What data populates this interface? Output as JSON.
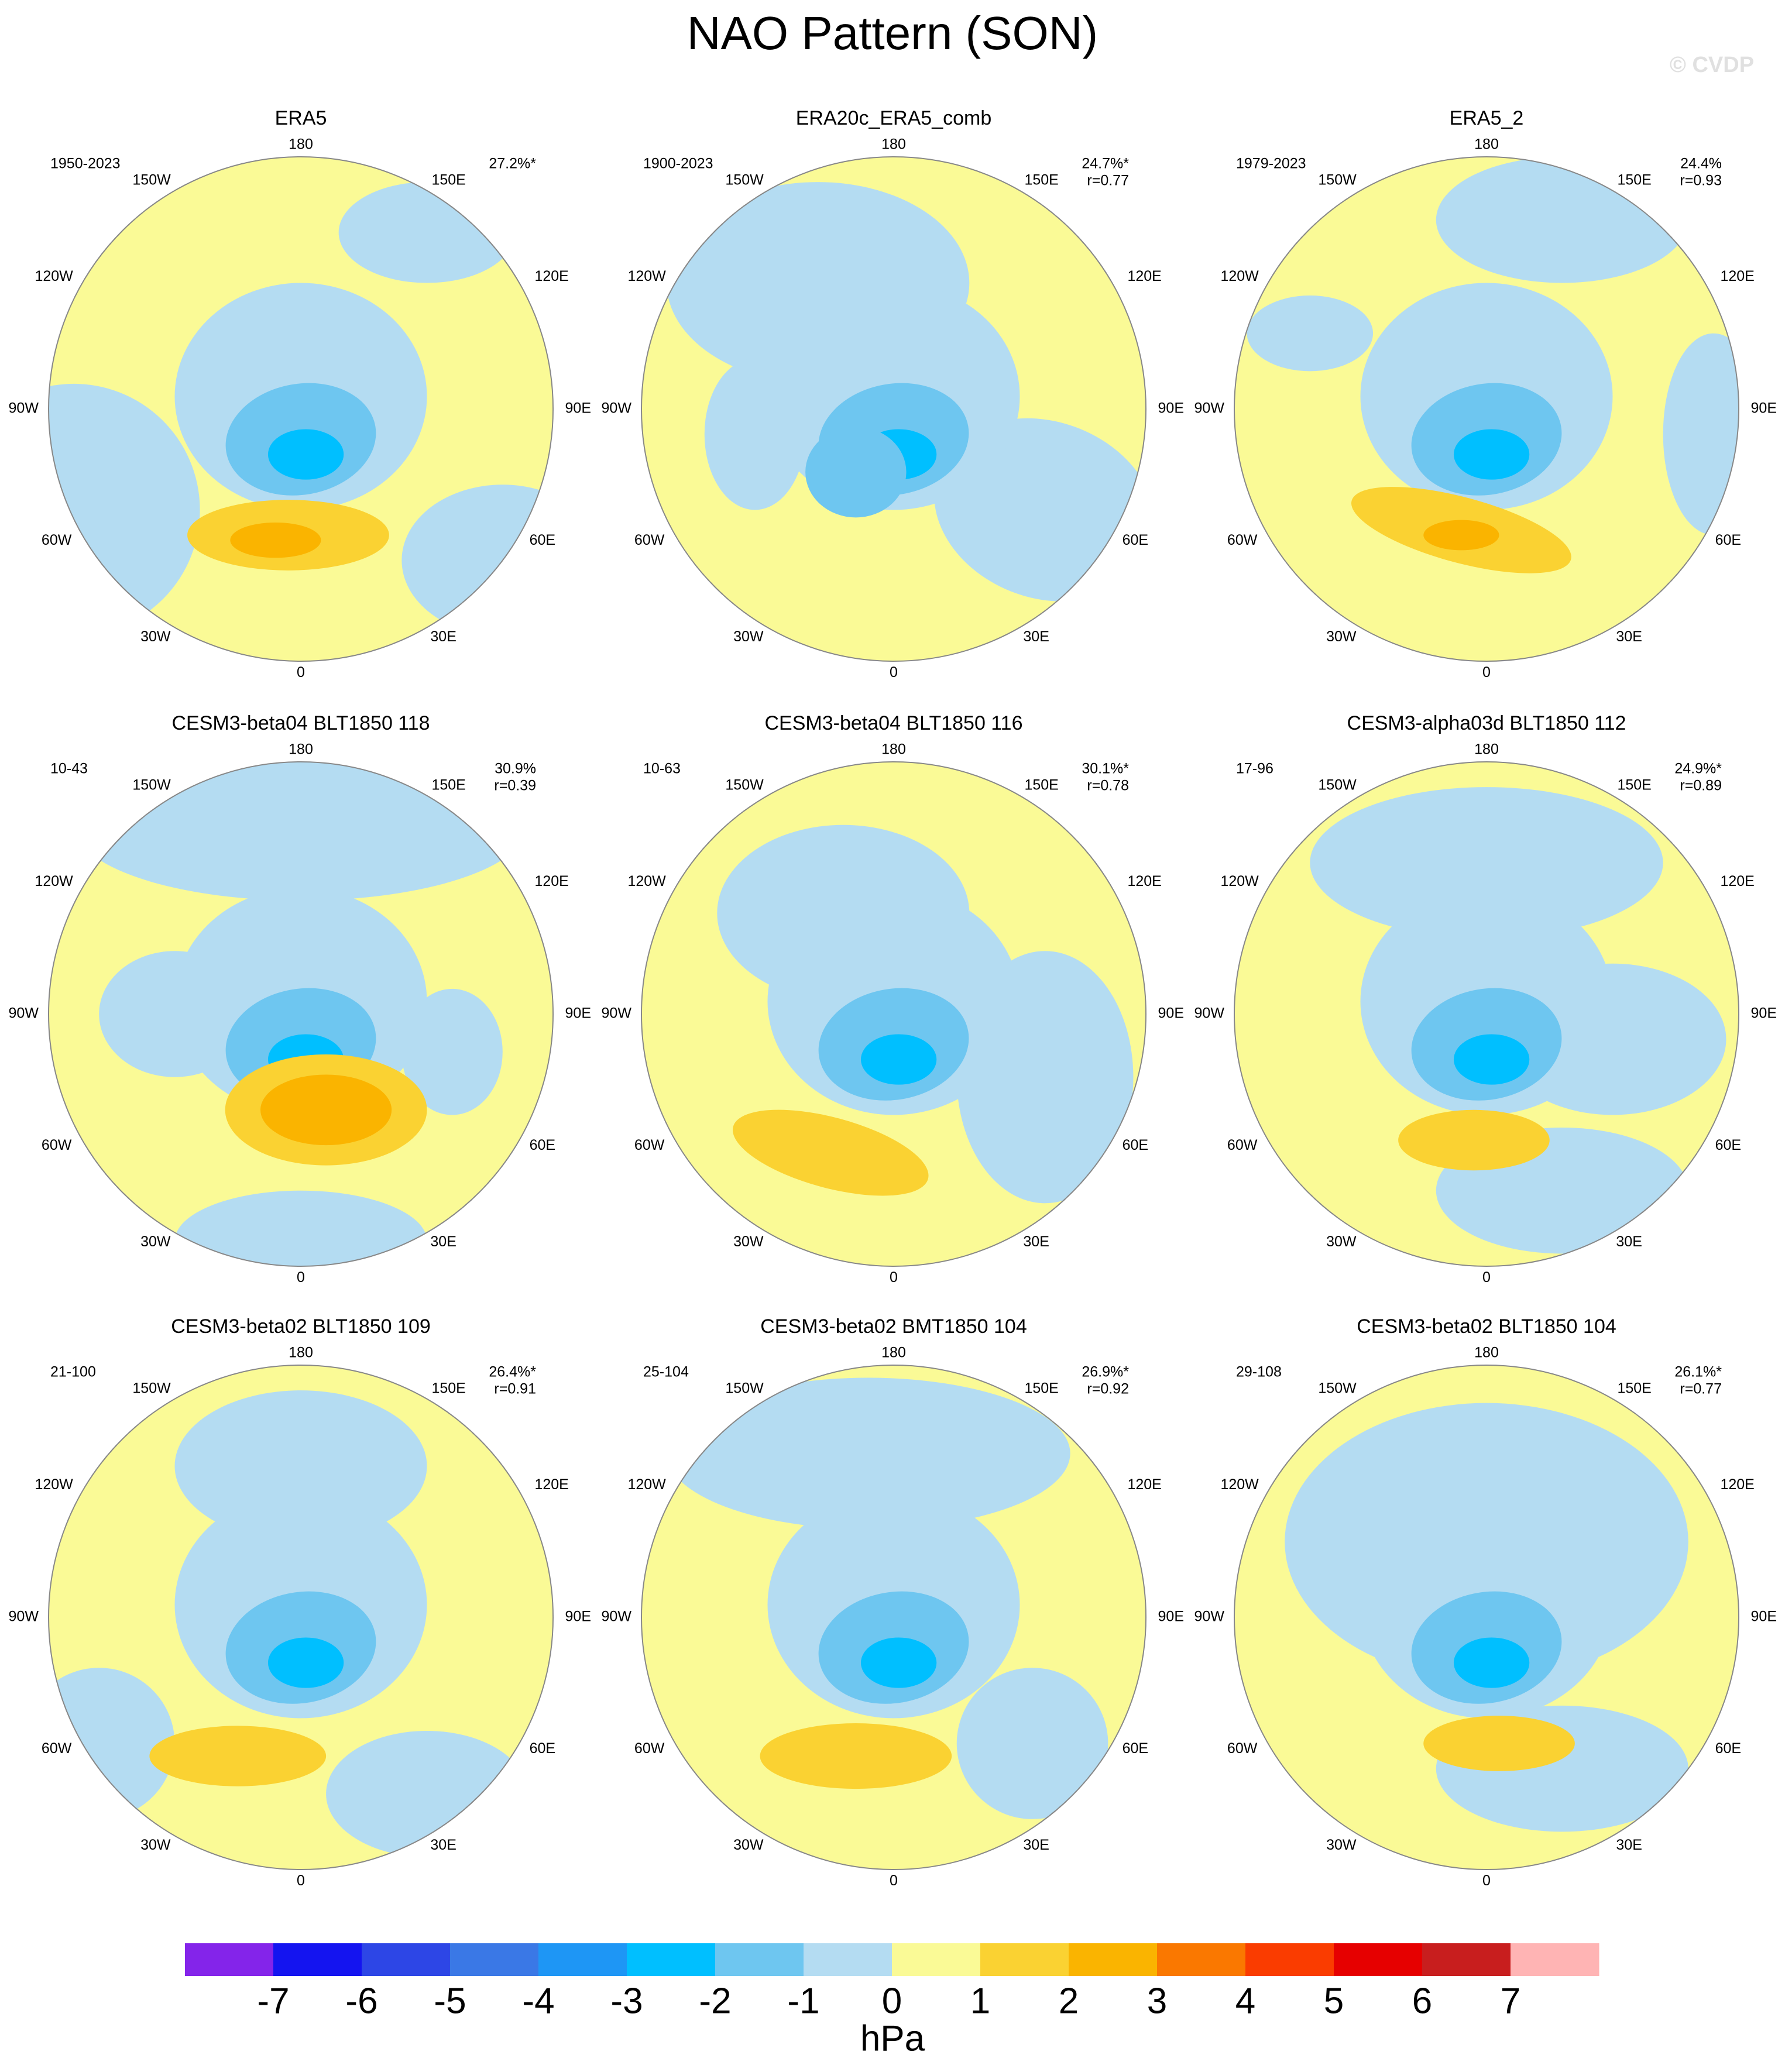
{
  "header": {
    "title": "NAO Pattern (SON)",
    "watermark": "© CVDP"
  },
  "lon_labels": [
    "180",
    "150W",
    "150E",
    "120W",
    "120E",
    "90W",
    "90E",
    "60W",
    "60E",
    "30W",
    "30E",
    "0"
  ],
  "panels": [
    {
      "title": "ERA5",
      "period": "1950-2023",
      "pct": "27.2%*"
    },
    {
      "title": "ERA20c_ERA5_comb",
      "period": "1900-2023",
      "pct": "24.7%*",
      "r": "r=0.77"
    },
    {
      "title": "ERA5_2",
      "period": "1979-2023",
      "pct": "24.4%",
      "r": "r=0.93"
    },
    {
      "title": "CESM3-beta04 BLT1850 118",
      "period": "10-43",
      "pct": "30.9%",
      "r": "r=0.39"
    },
    {
      "title": "CESM3-beta04 BLT1850 116",
      "period": "10-63",
      "pct": "30.1%*",
      "r": "r=0.78"
    },
    {
      "title": "CESM3-alpha03d BLT1850 112",
      "period": "17-96",
      "pct": "24.9%*",
      "r": "r=0.89"
    },
    {
      "title": "CESM3-beta02 BLT1850 109",
      "period": "21-100",
      "pct": "26.4%*",
      "r": "r=0.91"
    },
    {
      "title": "CESM3-beta02 BMT1850 104",
      "period": "25-104",
      "pct": "26.9%*",
      "r": "r=0.92"
    },
    {
      "title": "CESM3-beta02 BLT1850 104",
      "period": "29-108",
      "pct": "26.1%*",
      "r": "r=0.77"
    }
  ],
  "colorbar": {
    "levels": [
      -7,
      -6,
      -5,
      -4,
      -3,
      -2,
      -1,
      0,
      1,
      2,
      3,
      4,
      5,
      6,
      7
    ],
    "colors": [
      "#8424ea",
      "#1414f0",
      "#2d46e6",
      "#3a78e6",
      "#1e96f5",
      "#00bfff",
      "#6ec6f0",
      "#b4dcf2",
      "#fafa96",
      "#fad232",
      "#fab400",
      "#fa7800",
      "#fa3c00",
      "#e60000",
      "#c81e1e",
      "#ffb4b4"
    ],
    "label": "hPa"
  }
}
